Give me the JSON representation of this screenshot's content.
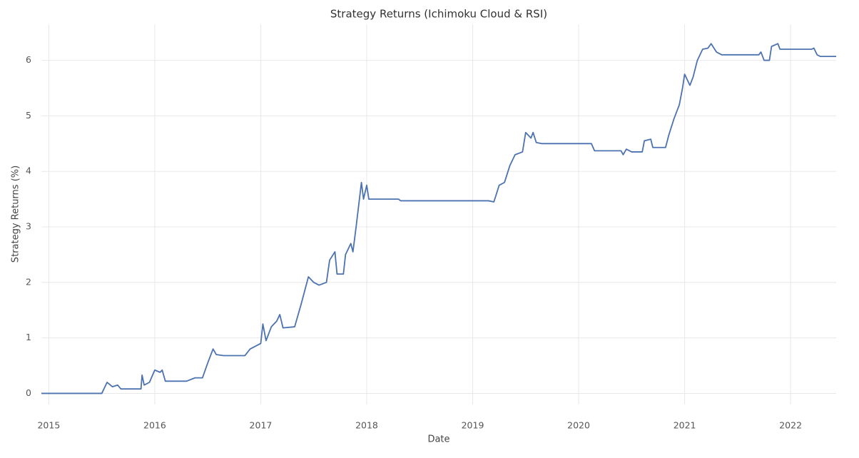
{
  "chart_data": {
    "type": "line",
    "title": "Strategy Returns (Ichimoku Cloud & RSI)",
    "x_label": "Date",
    "y_label": "Strategy Returns (%)",
    "x": [
      2014.93,
      2015.5,
      2015.55,
      2015.6,
      2015.65,
      2015.68,
      2015.87,
      2015.88,
      2015.9,
      2015.95,
      2016.0,
      2016.05,
      2016.07,
      2016.1,
      2016.3,
      2016.38,
      2016.45,
      2016.5,
      2016.55,
      2016.58,
      2016.65,
      2016.85,
      2016.9,
      2017.0,
      2017.02,
      2017.05,
      2017.1,
      2017.15,
      2017.18,
      2017.21,
      2017.32,
      2017.38,
      2017.45,
      2017.5,
      2017.55,
      2017.62,
      2017.65,
      2017.7,
      2017.72,
      2017.78,
      2017.8,
      2017.85,
      2017.87,
      2017.9,
      2017.95,
      2017.97,
      2018.0,
      2018.02,
      2018.3,
      2018.32,
      2019.15,
      2019.2,
      2019.25,
      2019.3,
      2019.35,
      2019.4,
      2019.47,
      2019.5,
      2019.55,
      2019.57,
      2019.6,
      2019.65,
      2020.12,
      2020.15,
      2020.4,
      2020.42,
      2020.45,
      2020.5,
      2020.6,
      2020.62,
      2020.68,
      2020.7,
      2020.82,
      2020.85,
      2020.9,
      2020.95,
      2020.98,
      2021.0,
      2021.05,
      2021.08,
      2021.12,
      2021.17,
      2021.22,
      2021.25,
      2021.3,
      2021.35,
      2021.7,
      2021.72,
      2021.75,
      2021.8,
      2021.82,
      2021.88,
      2021.9,
      2022.2,
      2022.22,
      2022.25,
      2022.28,
      2022.43
    ],
    "series": [
      {
        "name": "Strategy Returns",
        "color": "#4c72b0",
        "values": [
          0,
          0,
          0.2,
          0.12,
          0.15,
          0.08,
          0.08,
          0.33,
          0.15,
          0.2,
          0.42,
          0.38,
          0.42,
          0.22,
          0.22,
          0.28,
          0.28,
          0.55,
          0.8,
          0.7,
          0.68,
          0.68,
          0.8,
          0.9,
          1.25,
          0.95,
          1.2,
          1.3,
          1.42,
          1.18,
          1.2,
          1.6,
          2.1,
          2.0,
          1.95,
          2.0,
          2.4,
          2.55,
          2.15,
          2.15,
          2.5,
          2.7,
          2.55,
          3.0,
          3.8,
          3.5,
          3.75,
          3.5,
          3.5,
          3.47,
          3.47,
          3.45,
          3.75,
          3.8,
          4.1,
          4.3,
          4.35,
          4.7,
          4.6,
          4.7,
          4.52,
          4.5,
          4.5,
          4.37,
          4.37,
          4.3,
          4.4,
          4.35,
          4.35,
          4.55,
          4.58,
          4.43,
          4.43,
          4.65,
          4.95,
          5.2,
          5.5,
          5.75,
          5.55,
          5.7,
          6.0,
          6.2,
          6.22,
          6.3,
          6.15,
          6.1,
          6.1,
          6.15,
          6.0,
          6.0,
          6.25,
          6.3,
          6.2,
          6.2,
          6.22,
          6.1,
          6.07,
          6.07
        ]
      }
    ],
    "xlim": [
      2014.93,
      2022.43
    ],
    "xticks": [
      2015,
      2016,
      2017,
      2018,
      2019,
      2020,
      2021,
      2022
    ],
    "ylim": [
      -0.2,
      6.65
    ],
    "yticks": [
      0,
      1,
      2,
      3,
      4,
      5,
      6
    ],
    "grid": true
  }
}
